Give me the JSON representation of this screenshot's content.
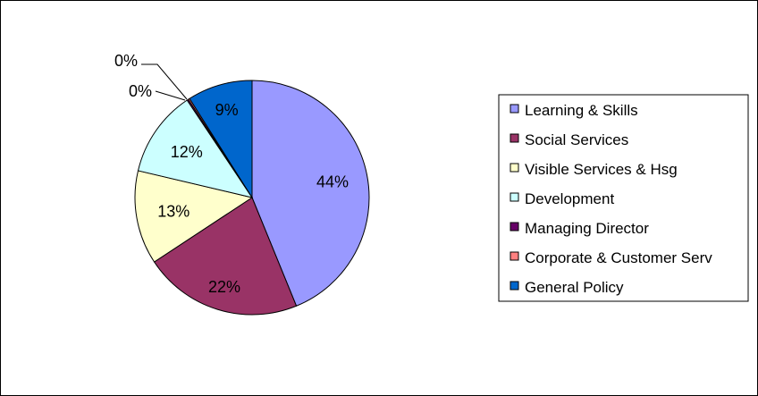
{
  "chart_data": {
    "type": "pie",
    "title": "",
    "legend_position": "right",
    "slices": [
      {
        "label": "Learning & Skills",
        "value": 44,
        "color": "#9999FF",
        "value_label": "44%"
      },
      {
        "label": "Social Services",
        "value": 22,
        "color": "#993366",
        "value_label": "22%"
      },
      {
        "label": "Visible Services & Hsg",
        "value": 13,
        "color": "#FFFFCC",
        "value_label": "13%"
      },
      {
        "label": "Development",
        "value": 12,
        "color": "#CCFFFF",
        "value_label": "12%"
      },
      {
        "label": "Managing Director",
        "value": 0.2,
        "color": "#660066",
        "value_label": "0%"
      },
      {
        "label": "Corporate & Customer Serv",
        "value": 0.2,
        "color": "#FF8080",
        "value_label": "0%"
      },
      {
        "label": "General Policy",
        "value": 9,
        "color": "#0066CC",
        "value_label": "9%"
      }
    ]
  }
}
